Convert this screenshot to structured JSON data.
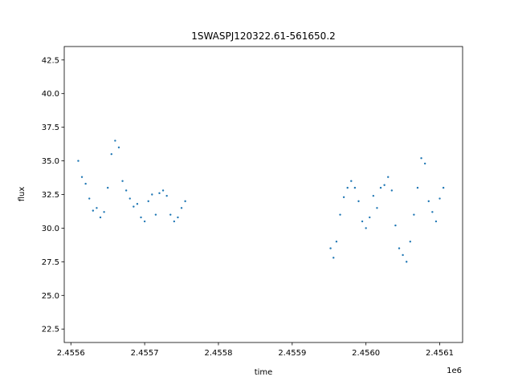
{
  "chart_data": {
    "type": "scatter",
    "title": "1SWASPJ120322.61-561650.2",
    "xlabel": "time",
    "ylabel": "flux",
    "x_offset_label": "1e6",
    "xlim": [
      2.455591,
      2.456131
    ],
    "ylim": [
      21.5,
      43.5
    ],
    "x_ticks": [
      2.4556,
      2.4557,
      2.4558,
      2.4559,
      2.456,
      2.4561
    ],
    "x_tick_labels": [
      "2.4556",
      "2.4557",
      "2.4558",
      "2.4559",
      "2.4560",
      "2.4561"
    ],
    "y_ticks": [
      22.5,
      25.0,
      27.5,
      30.0,
      32.5,
      35.0,
      37.5,
      40.0,
      42.5
    ],
    "y_tick_labels": [
      "22.5",
      "25.0",
      "27.5",
      "30.0",
      "32.5",
      "35.0",
      "37.5",
      "40.0",
      "42.5"
    ],
    "grid": false,
    "marker_color": "#1f77b4",
    "series": [
      {
        "x": [
          2.45561,
          2.455615,
          2.45562,
          2.455625,
          2.45563,
          2.455635,
          2.45564,
          2.455645,
          2.45565,
          2.455655,
          2.45566,
          2.455665,
          2.45567,
          2.455675,
          2.45568,
          2.455685,
          2.45569,
          2.455695,
          2.4557,
          2.455705,
          2.45571,
          2.455715,
          2.45572,
          2.455725,
          2.45573,
          2.455735,
          2.45574,
          2.455745,
          2.45575,
          2.455755,
          2.455952,
          2.455956,
          2.45596,
          2.455965,
          2.45597,
          2.455975,
          2.45598,
          2.455985,
          2.45599,
          2.455995,
          2.456,
          2.456005,
          2.45601,
          2.456015,
          2.45602,
          2.456025,
          2.45603,
          2.456035,
          2.45604,
          2.456045,
          2.45605,
          2.456055,
          2.45606,
          2.456065,
          2.45607,
          2.456075,
          2.45608,
          2.456085,
          2.45609,
          2.456095,
          2.4561,
          2.456105
        ],
        "y": [
          35.0,
          33.8,
          33.3,
          32.2,
          31.3,
          31.5,
          30.8,
          31.2,
          33.0,
          35.5,
          36.5,
          36.0,
          33.5,
          32.8,
          32.2,
          31.6,
          31.8,
          30.8,
          30.5,
          32.0,
          32.5,
          31.0,
          32.6,
          32.8,
          32.4,
          31.0,
          30.5,
          30.8,
          31.5,
          32.0,
          28.5,
          27.8,
          29.0,
          31.0,
          32.3,
          33.0,
          33.5,
          33.0,
          32.0,
          30.5,
          30.0,
          30.8,
          32.4,
          31.5,
          33.0,
          33.2,
          33.8,
          32.8,
          30.2,
          28.5,
          28.0,
          27.5,
          29.0,
          31.0,
          33.0,
          35.2,
          34.8,
          32.0,
          31.2,
          30.5,
          32.2,
          33.0
        ]
      }
    ]
  }
}
